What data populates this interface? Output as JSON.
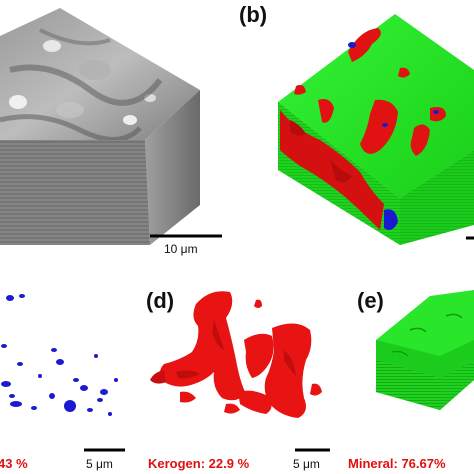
{
  "panels": {
    "a": {
      "scale": "10 μm"
    },
    "b": {
      "label": "(b)"
    },
    "c": {
      "fraction": "43 %",
      "scale": "5 μm"
    },
    "d": {
      "label": "(d)",
      "fraction": "Kerogen: 22.9 %",
      "scale": "5 μm"
    },
    "e": {
      "label": "(e)",
      "fraction": "Mineral: 76.67%"
    }
  },
  "colors": {
    "pore": "#1a1ad0",
    "kerogen": "#e01010",
    "mineral": "#22e022",
    "grayscale": "#8c8c8c"
  }
}
